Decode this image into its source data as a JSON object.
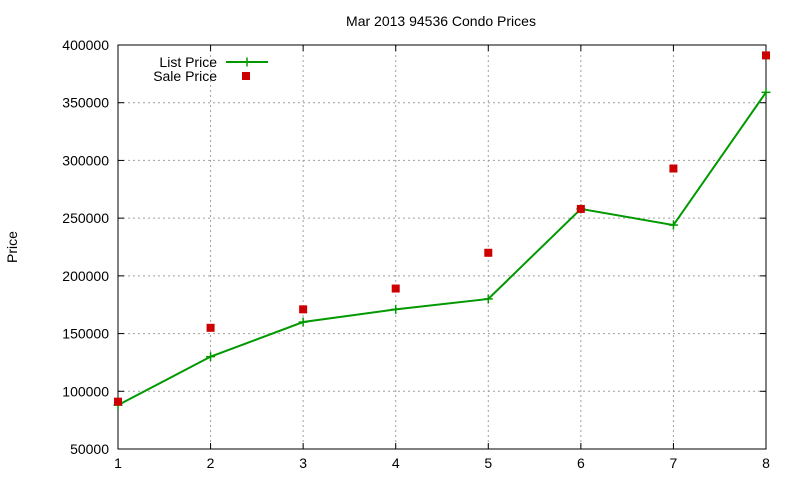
{
  "chart_data": {
    "type": "line",
    "title": "Mar 2013 94536 Condo Prices",
    "xlabel": "",
    "ylabel": "Price",
    "x": [
      1,
      2,
      3,
      4,
      5,
      6,
      7,
      8
    ],
    "xlim": [
      1,
      8
    ],
    "ylim": [
      50000,
      400000
    ],
    "xticks": [
      "1",
      "2",
      "3",
      "4",
      "5",
      "6",
      "7",
      "8"
    ],
    "yticks": [
      "50000",
      "100000",
      "150000",
      "200000",
      "250000",
      "300000",
      "350000",
      "400000"
    ],
    "grid": true,
    "legend_position": "top-left",
    "series": [
      {
        "name": "List Price",
        "style": "line+points",
        "marker": "plus",
        "color": "#009900",
        "values": [
          88000,
          130000,
          160000,
          171000,
          180000,
          258000,
          244000,
          359000
        ]
      },
      {
        "name": "Sale Price",
        "style": "points",
        "marker": "square",
        "color": "#cc0000",
        "values": [
          91000,
          155000,
          171000,
          189000,
          220000,
          258000,
          293000,
          391000
        ]
      }
    ]
  }
}
